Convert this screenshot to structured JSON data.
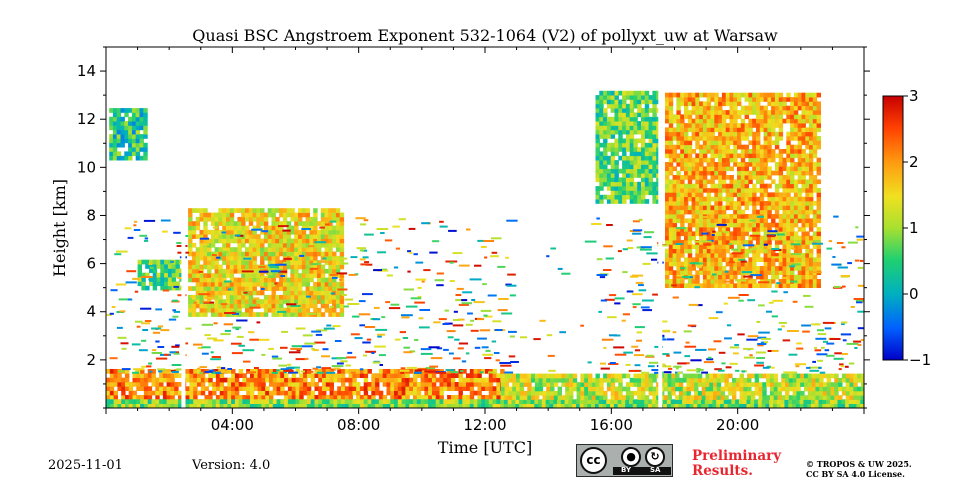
{
  "chart_data": {
    "type": "heatmap",
    "title": "Quasi BSC Angstroem Exponent 532-1064 (V2) of pollyxt_uw at Warsaw",
    "xlabel": "Time [UTC]",
    "ylabel": "Height [km]",
    "xlim_hours": [
      0,
      24
    ],
    "ylim_km": [
      0,
      15
    ],
    "x_ticks": [
      {
        "value": 4,
        "label": "04:00"
      },
      {
        "value": 8,
        "label": "08:00"
      },
      {
        "value": 12,
        "label": "12:00"
      },
      {
        "value": 16,
        "label": "16:00"
      },
      {
        "value": 20,
        "label": "20:00"
      }
    ],
    "y_ticks": [
      {
        "value": 2,
        "label": "2"
      },
      {
        "value": 4,
        "label": "4"
      },
      {
        "value": 6,
        "label": "6"
      },
      {
        "value": 8,
        "label": "8"
      },
      {
        "value": 10,
        "label": "10"
      },
      {
        "value": 12,
        "label": "12"
      },
      {
        "value": 14,
        "label": "14"
      }
    ],
    "colorbar": {
      "range": [
        -1,
        3
      ],
      "ticks": [
        {
          "value": -1,
          "label": "−1"
        },
        {
          "value": 0,
          "label": "0"
        },
        {
          "value": 1,
          "label": "1"
        },
        {
          "value": 2,
          "label": "2"
        },
        {
          "value": 3,
          "label": "3"
        }
      ],
      "colormap": "jet"
    },
    "data_gaps_hours": [
      2.45,
      17.55
    ],
    "features": [
      {
        "name": "boundary-layer",
        "t_start": 0,
        "t_end": 12.5,
        "h_low": 0,
        "h_high": 1.6,
        "value": 2.1
      },
      {
        "name": "surface-layer",
        "t_start": 0,
        "t_end": 24,
        "h_low": 0,
        "h_high": 0.35,
        "value": 0.9
      },
      {
        "name": "residual-layer",
        "t_start": 12.5,
        "t_end": 24,
        "h_low": 0.35,
        "h_high": 1.3,
        "value": 1.2
      },
      {
        "name": "aerosol-layer-morning",
        "t_start": 1.0,
        "t_end": 2.4,
        "h_low": 4.9,
        "h_high": 6.0,
        "value": 0.7
      },
      {
        "name": "aerosol-layer-forenoon",
        "t_start": 2.6,
        "t_end": 7.5,
        "h_low": 3.8,
        "h_high": 8.2,
        "value": 1.5
      },
      {
        "name": "cirrus-night",
        "t_start": 0.1,
        "t_end": 1.2,
        "h_low": 10.3,
        "h_high": 12.4,
        "value": 0.4
      },
      {
        "name": "cirrus-afternoon",
        "t_start": 15.5,
        "t_end": 17.5,
        "h_low": 8.5,
        "h_high": 13.0,
        "value": 0.7
      },
      {
        "name": "cirrus-evening",
        "t_start": 17.7,
        "t_end": 22.6,
        "h_low": 5.0,
        "h_high": 13.0,
        "value": 1.8
      }
    ]
  },
  "footer": {
    "date": "2025-11-01",
    "version": "Version: 4.0",
    "preliminary": "Preliminary Results.",
    "copyright_line1": "© TROPOS & UW 2025.",
    "copyright_line2": "CC BY SA 4.0 License."
  },
  "license_badge": {
    "cc": "cc",
    "by": "BY",
    "sa": "SA"
  }
}
